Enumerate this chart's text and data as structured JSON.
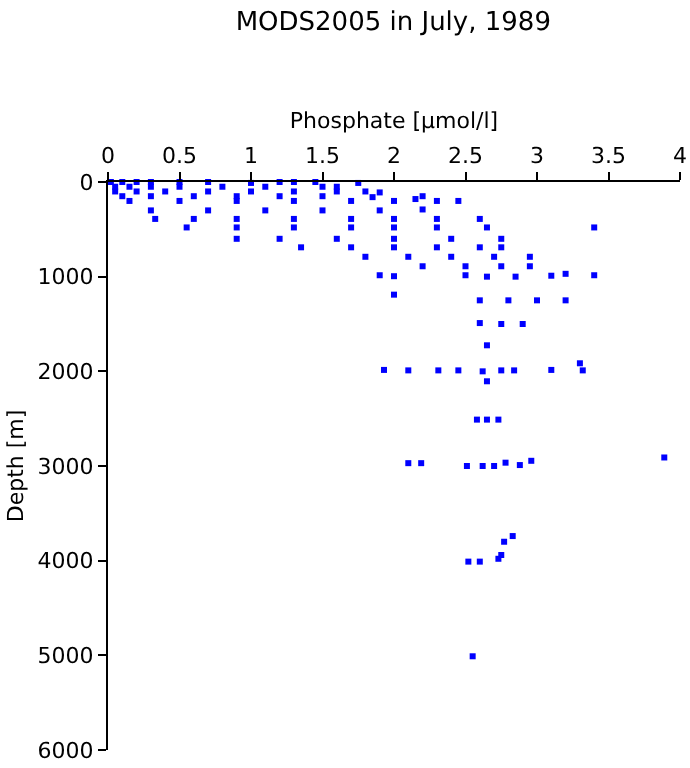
{
  "chart_data": {
    "type": "scatter",
    "title": "MODS2005 in July, 1989",
    "xlabel": "Phosphate [µmol/l]",
    "ylabel": "Depth [m]",
    "xlim": [
      0,
      4
    ],
    "xticks": [
      0,
      0.5,
      1,
      1.5,
      2,
      2.5,
      3,
      3.5,
      4
    ],
    "ylim": [
      6000,
      0
    ],
    "yticks": [
      0,
      1000,
      2000,
      3000,
      4000,
      5000,
      6000
    ],
    "grid": false,
    "legend": false,
    "marker": "square",
    "series": [
      {
        "color": "#0000ff",
        "x": [
          0.02,
          0.1,
          0.2,
          0.3,
          0.5,
          0.7,
          1.0,
          1.2,
          1.3,
          1.45,
          1.75,
          0.05,
          0.15,
          0.3,
          0.5,
          0.8,
          1.1,
          1.5,
          1.6,
          0.05,
          0.2,
          0.4,
          0.7,
          1.0,
          1.3,
          1.6,
          1.8,
          1.9,
          0.1,
          0.3,
          0.6,
          0.9,
          1.2,
          1.5,
          1.85,
          2.15,
          2.2,
          0.15,
          0.5,
          0.9,
          1.3,
          1.7,
          2.0,
          2.3,
          2.45,
          0.3,
          0.7,
          1.1,
          1.5,
          1.9,
          2.2,
          0.33,
          0.6,
          0.9,
          1.3,
          1.7,
          2.0,
          2.3,
          2.6,
          0.55,
          0.9,
          1.3,
          1.7,
          2.0,
          2.3,
          2.65,
          3.4,
          0.9,
          1.2,
          1.6,
          2.0,
          2.4,
          2.75,
          1.35,
          1.7,
          2.0,
          2.3,
          2.6,
          2.75,
          1.8,
          2.1,
          2.4,
          2.7,
          2.95,
          2.2,
          2.5,
          2.75,
          2.95,
          1.9,
          2.0,
          2.5,
          2.65,
          2.85,
          3.1,
          3.2,
          3.4,
          2.0,
          2.6,
          2.8,
          3.0,
          3.2,
          2.6,
          2.75,
          2.9,
          2.65,
          1.93,
          2.1,
          2.31,
          2.45,
          2.62,
          2.75,
          2.84,
          3.1,
          3.32,
          2.65,
          3.3,
          2.58,
          2.65,
          2.73,
          3.89,
          2.96,
          2.1,
          2.19,
          2.51,
          2.62,
          2.7,
          2.78,
          2.88,
          2.77,
          2.83,
          2.52,
          2.6,
          2.73,
          2.75,
          2.55
        ],
        "values": [
          0,
          0,
          0,
          0,
          0,
          0,
          10,
          0,
          0,
          0,
          10,
          50,
          50,
          50,
          50,
          50,
          50,
          50,
          50,
          100,
          100,
          100,
          100,
          100,
          100,
          100,
          100,
          110,
          150,
          150,
          150,
          150,
          150,
          150,
          160,
          180,
          150,
          200,
          200,
          200,
          200,
          200,
          200,
          200,
          200,
          300,
          300,
          300,
          300,
          300,
          290,
          390,
          390,
          390,
          390,
          390,
          390,
          390,
          390,
          480,
          480,
          480,
          480,
          480,
          480,
          480,
          480,
          600,
          600,
          600,
          600,
          600,
          600,
          690,
          690,
          690,
          690,
          690,
          690,
          790,
          790,
          790,
          790,
          790,
          890,
          890,
          890,
          890,
          985,
          995,
          985,
          1000,
          1000,
          990,
          970,
          985,
          1190,
          1250,
          1250,
          1250,
          1250,
          1490,
          1500,
          1500,
          1725,
          1985,
          1990,
          1990,
          1990,
          2000,
          1990,
          1990,
          1985,
          1990,
          2105,
          1915,
          2510,
          2510,
          2510,
          2910,
          2945,
          2970,
          2970,
          3000,
          3000,
          3000,
          2965,
          2990,
          3800,
          3740,
          4010,
          4010,
          3980,
          3940,
          5010
        ]
      }
    ]
  }
}
